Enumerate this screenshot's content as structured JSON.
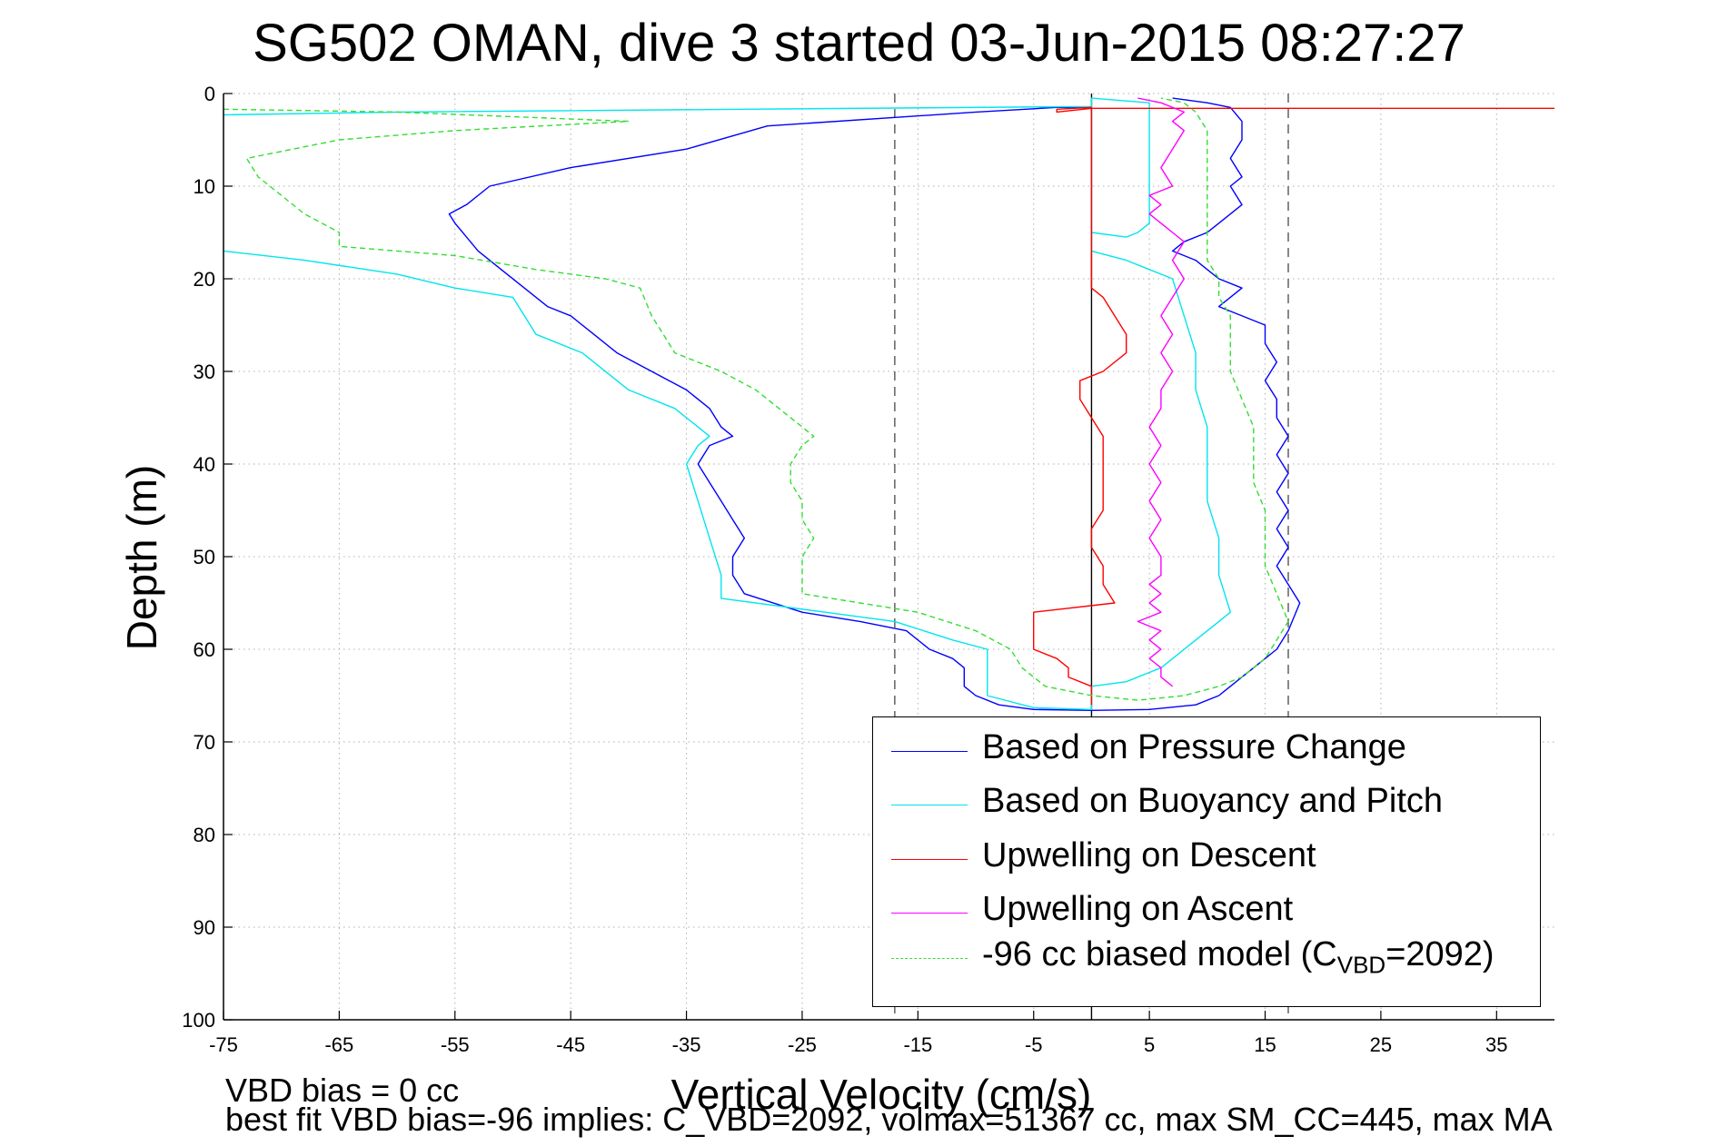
{
  "page_title": "SG502 OMAN, dive 3 started 03-Jun-2015 08:27:27",
  "footer": {
    "line1": "VBD bias = 0 cc",
    "line2": "best fit VBD bias=-96 implies: C_VBD=2092, volmax=51367 cc, max SM_CC=445, max MA"
  },
  "chart_data": {
    "type": "line",
    "title": "SG502 OMAN, dive 3 started 03-Jun-2015 08:27:27",
    "xlabel": "Vertical Velocity (cm/s)",
    "ylabel": "Depth (m)",
    "xlim": [
      -75,
      40
    ],
    "ylim": [
      0,
      100
    ],
    "y_reversed": true,
    "grid": true,
    "xticks": [
      -75,
      -65,
      -55,
      -45,
      -35,
      -25,
      -15,
      -5,
      5,
      15,
      25,
      35
    ],
    "xtick_labels": [
      "-75",
      "-65",
      "-55",
      "-45",
      "-35",
      "-25",
      "-15",
      "-5",
      "5",
      "15",
      "25",
      "35"
    ],
    "yticks": [
      0,
      10,
      20,
      30,
      40,
      50,
      60,
      70,
      80,
      90,
      100
    ],
    "ytick_labels": [
      "0",
      "10",
      "20",
      "30",
      "40",
      "50",
      "60",
      "70",
      "80",
      "90",
      "100"
    ],
    "legend_position": "bottom-right",
    "reference_lines": [
      {
        "x": -17,
        "style": "dashed",
        "color": "#555555"
      },
      {
        "x": 0,
        "style": "solid",
        "color": "#000000"
      },
      {
        "x": 17,
        "style": "dashed",
        "color": "#555555"
      }
    ],
    "series": [
      {
        "name": "Based on Pressure Change",
        "color": "#0000ff",
        "dash": false,
        "points": [
          [
            0,
            1.5
          ],
          [
            -3,
            1.5
          ],
          [
            -10,
            2
          ],
          [
            -28,
            3.5
          ],
          [
            -35,
            6
          ],
          [
            -45,
            8
          ],
          [
            -52,
            10
          ],
          [
            -54,
            12
          ],
          [
            -55.5,
            13
          ],
          [
            -55,
            14
          ],
          [
            -53,
            17
          ],
          [
            -51,
            19
          ],
          [
            -49,
            21
          ],
          [
            -47,
            23
          ],
          [
            -45,
            24
          ],
          [
            -43,
            26
          ],
          [
            -41,
            28
          ],
          [
            -38,
            30
          ],
          [
            -35,
            32
          ],
          [
            -33,
            34
          ],
          [
            -32,
            36
          ],
          [
            -31,
            37
          ],
          [
            -33,
            38
          ],
          [
            -34,
            40
          ],
          [
            -33,
            42
          ],
          [
            -32,
            44
          ],
          [
            -31,
            46
          ],
          [
            -30,
            48
          ],
          [
            -31,
            50
          ],
          [
            -31,
            52
          ],
          [
            -30,
            54
          ],
          [
            -25,
            56
          ],
          [
            -20,
            57
          ],
          [
            -16,
            58
          ],
          [
            -14,
            60
          ],
          [
            -12,
            61
          ],
          [
            -11,
            62
          ],
          [
            -11,
            64
          ],
          [
            -10,
            65
          ],
          [
            -8,
            66
          ],
          [
            -5,
            66.5
          ],
          [
            0,
            66.6
          ],
          [
            5,
            66.5
          ],
          [
            9,
            66
          ],
          [
            11,
            65
          ],
          [
            12,
            64
          ],
          [
            13,
            63
          ],
          [
            14,
            62
          ],
          [
            15,
            61
          ],
          [
            16,
            60
          ],
          [
            17,
            58
          ],
          [
            18,
            55
          ],
          [
            17,
            53
          ],
          [
            16,
            51
          ],
          [
            17,
            49
          ],
          [
            16,
            47
          ],
          [
            17,
            45
          ],
          [
            16,
            43
          ],
          [
            17,
            41
          ],
          [
            16,
            39
          ],
          [
            17,
            37
          ],
          [
            16,
            35
          ],
          [
            16,
            33
          ],
          [
            15,
            31
          ],
          [
            16,
            29
          ],
          [
            15,
            27
          ],
          [
            15,
            25
          ],
          [
            11,
            23
          ],
          [
            13,
            21
          ],
          [
            11,
            20
          ],
          [
            10,
            19
          ],
          [
            9,
            18
          ],
          [
            7,
            17
          ],
          [
            8,
            16
          ],
          [
            10,
            15
          ],
          [
            11,
            14
          ],
          [
            13,
            12
          ],
          [
            12,
            10
          ],
          [
            13,
            9
          ],
          [
            12,
            7
          ],
          [
            13,
            5
          ],
          [
            13,
            3
          ],
          [
            12,
            1.5
          ],
          [
            10,
            1
          ],
          [
            7,
            0.5
          ]
        ]
      },
      {
        "name": "Based on Buoyancy and Pitch",
        "color": "#00e5ee",
        "dash": false,
        "points": [
          [
            -75,
            2.3
          ],
          [
            -60,
            2
          ],
          [
            -30,
            1.7
          ],
          [
            0,
            1.4
          ],
          [
            0,
            15
          ],
          [
            3,
            15.5
          ],
          [
            4,
            15
          ],
          [
            5,
            14
          ],
          [
            5,
            10
          ],
          [
            5,
            6
          ],
          [
            5,
            3
          ],
          [
            5,
            1
          ],
          [
            0,
            0.5
          ],
          [
            0,
            17
          ],
          [
            3,
            18
          ],
          [
            5,
            19
          ],
          [
            7,
            20
          ],
          [
            8,
            24
          ],
          [
            9,
            28
          ],
          [
            9,
            32
          ],
          [
            10,
            36
          ],
          [
            10,
            40
          ],
          [
            10,
            44
          ],
          [
            11,
            48
          ],
          [
            11,
            52
          ],
          [
            12,
            56
          ],
          [
            11,
            57
          ],
          [
            9,
            59
          ],
          [
            6,
            62
          ],
          [
            3,
            63.5
          ],
          [
            0,
            64
          ],
          [
            0,
            66.5
          ],
          [
            -5,
            66.3
          ],
          [
            -9,
            65
          ],
          [
            -9,
            62
          ],
          [
            -9,
            60
          ],
          [
            -12,
            59
          ],
          [
            -17,
            57
          ],
          [
            -23,
            56
          ],
          [
            -32,
            54.5
          ],
          [
            -32,
            52
          ],
          [
            -33,
            48
          ],
          [
            -34,
            44
          ],
          [
            -35,
            40
          ],
          [
            -34,
            38
          ],
          [
            -33,
            37
          ],
          [
            -34,
            36
          ],
          [
            -36,
            34
          ],
          [
            -40,
            32
          ],
          [
            -44,
            28
          ],
          [
            -48,
            26
          ],
          [
            -49,
            24
          ],
          [
            -50,
            22
          ],
          [
            -55,
            21
          ],
          [
            -60,
            19.5
          ],
          [
            -68,
            18
          ],
          [
            -75,
            17
          ]
        ]
      },
      {
        "name": "Upwelling on Descent",
        "color": "#ff0000",
        "dash": false,
        "points": [
          [
            40,
            1.6
          ],
          [
            20,
            1.6
          ],
          [
            0,
            1.6
          ],
          [
            -3,
            2
          ],
          [
            -3,
            1.7
          ],
          [
            0,
            1.5
          ],
          [
            0,
            21
          ],
          [
            1,
            22
          ],
          [
            2,
            24
          ],
          [
            3,
            26
          ],
          [
            3,
            28
          ],
          [
            1,
            30
          ],
          [
            -1,
            31
          ],
          [
            -1,
            33
          ],
          [
            0,
            35
          ],
          [
            1,
            37
          ],
          [
            1,
            39
          ],
          [
            1,
            41
          ],
          [
            1,
            43
          ],
          [
            1,
            45
          ],
          [
            0,
            47
          ],
          [
            0,
            49
          ],
          [
            1,
            51
          ],
          [
            1,
            53
          ],
          [
            2,
            55
          ],
          [
            -5,
            56
          ],
          [
            -5,
            58
          ],
          [
            -5,
            60
          ],
          [
            -3,
            61
          ],
          [
            -2,
            62
          ],
          [
            -2,
            63
          ],
          [
            0,
            64
          ],
          [
            0,
            66
          ]
        ]
      },
      {
        "name": "Upwelling on Ascent",
        "color": "#ff00ff",
        "dash": false,
        "points": [
          [
            7,
            64
          ],
          [
            6,
            63
          ],
          [
            6,
            62
          ],
          [
            5,
            61
          ],
          [
            6,
            60
          ],
          [
            5,
            59
          ],
          [
            6,
            58
          ],
          [
            4,
            57
          ],
          [
            6,
            56
          ],
          [
            5,
            55
          ],
          [
            6,
            54
          ],
          [
            5,
            53
          ],
          [
            6,
            52
          ],
          [
            6,
            50
          ],
          [
            5,
            48
          ],
          [
            6,
            46
          ],
          [
            5,
            44
          ],
          [
            6,
            42
          ],
          [
            5,
            40
          ],
          [
            6,
            38
          ],
          [
            5,
            36
          ],
          [
            6,
            34
          ],
          [
            6,
            32
          ],
          [
            7,
            30
          ],
          [
            6,
            28
          ],
          [
            7,
            26
          ],
          [
            6,
            24
          ],
          [
            7,
            22
          ],
          [
            8,
            20
          ],
          [
            7,
            18
          ],
          [
            8,
            16
          ],
          [
            7,
            15
          ],
          [
            6,
            14
          ],
          [
            5,
            13
          ],
          [
            6,
            12
          ],
          [
            5,
            11
          ],
          [
            7,
            10
          ],
          [
            6,
            8
          ],
          [
            7,
            6
          ],
          [
            8,
            4
          ],
          [
            7,
            3
          ],
          [
            8,
            2
          ],
          [
            6,
            1
          ],
          [
            4,
            0.5
          ]
        ]
      },
      {
        "name": "-96 cc biased model (C_VBD=2092)",
        "color": "#33dd33",
        "dash": true,
        "points": [
          [
            -75,
            1.7
          ],
          [
            -60,
            2
          ],
          [
            -40,
            3
          ],
          [
            -55,
            4
          ],
          [
            -65,
            5
          ],
          [
            -73,
            7
          ],
          [
            -72,
            9
          ],
          [
            -70,
            11
          ],
          [
            -68,
            13
          ],
          [
            -65,
            15
          ],
          [
            -65,
            16.5
          ],
          [
            -55,
            17.5
          ],
          [
            -48,
            19
          ],
          [
            -42,
            20
          ],
          [
            -39,
            21
          ],
          [
            -38,
            24
          ],
          [
            -37,
            26
          ],
          [
            -36,
            28
          ],
          [
            -32,
            30
          ],
          [
            -29,
            32
          ],
          [
            -27,
            34
          ],
          [
            -25,
            36
          ],
          [
            -24,
            37
          ],
          [
            -25,
            38
          ],
          [
            -26,
            40
          ],
          [
            -26,
            42
          ],
          [
            -25,
            44
          ],
          [
            -25,
            46
          ],
          [
            -24,
            48
          ],
          [
            -25,
            50
          ],
          [
            -25,
            52
          ],
          [
            -25,
            54
          ],
          [
            -20,
            55
          ],
          [
            -15,
            56
          ],
          [
            -10,
            58
          ],
          [
            -7,
            60
          ],
          [
            -6,
            62
          ],
          [
            -4,
            64
          ],
          [
            0,
            65
          ],
          [
            4,
            65.5
          ],
          [
            8,
            65
          ],
          [
            11,
            64
          ],
          [
            13,
            63
          ],
          [
            14,
            62
          ],
          [
            15,
            61
          ],
          [
            16,
            59
          ],
          [
            17,
            57
          ],
          [
            16,
            54
          ],
          [
            15,
            51
          ],
          [
            15,
            48
          ],
          [
            15,
            45
          ],
          [
            14,
            42
          ],
          [
            14,
            39
          ],
          [
            14,
            36
          ],
          [
            13,
            33
          ],
          [
            12,
            30
          ],
          [
            12,
            27
          ],
          [
            12,
            24
          ],
          [
            11,
            22
          ],
          [
            11,
            20
          ],
          [
            10,
            18
          ],
          [
            10,
            16
          ],
          [
            10,
            14
          ],
          [
            10,
            12
          ],
          [
            10,
            10
          ],
          [
            10,
            8
          ],
          [
            10,
            6
          ],
          [
            10,
            4
          ],
          [
            9,
            2
          ],
          [
            8,
            1
          ],
          [
            6,
            0.5
          ]
        ]
      }
    ],
    "legend_entries": [
      {
        "label": "Based on Pressure Change",
        "color": "#0000ff",
        "dash": false
      },
      {
        "label": "Based on Buoyancy and Pitch",
        "color": "#00e5ee",
        "dash": false
      },
      {
        "label": "Upwelling on Descent",
        "color": "#ff0000",
        "dash": false
      },
      {
        "label": "Upwelling on Ascent",
        "color": "#ff00ff",
        "dash": false
      },
      {
        "label_main": "-96 cc biased model (C",
        "label_sub": "VBD",
        "label_tail": "=2092)",
        "color": "#33dd33",
        "dash": true
      }
    ]
  }
}
